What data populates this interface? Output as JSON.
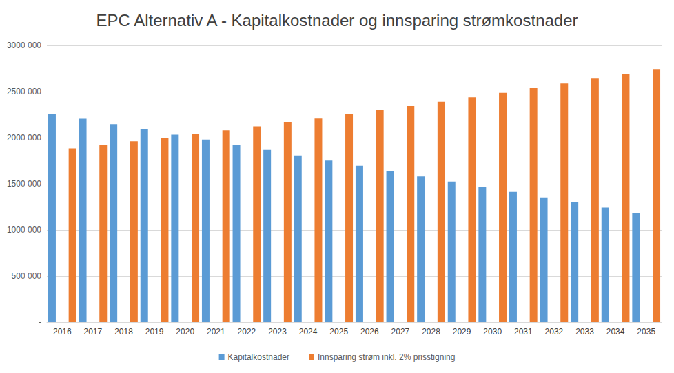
{
  "chart_data": {
    "type": "bar",
    "title": "EPC Alternativ A - Kapitalkostnader og innsparing strømkostnader",
    "categories": [
      "2016",
      "2017",
      "2018",
      "2019",
      "2020",
      "2021",
      "2022",
      "2023",
      "2024",
      "2025",
      "2026",
      "2027",
      "2028",
      "2029",
      "2030",
      "2031",
      "2032",
      "2033",
      "2034",
      "2035"
    ],
    "series": [
      {
        "name": "Kapitalkostnader",
        "color": "#5B9BD5",
        "values": [
          2260000,
          2205000,
          2148000,
          2093000,
          2033000,
          1980000,
          1920000,
          1867000,
          1808000,
          1752000,
          1695000,
          1638000,
          1580000,
          1525000,
          1467000,
          1412000,
          1352000,
          1298000,
          1243000,
          1185000
        ]
      },
      {
        "name": "Innsparing strøm inkl. 2% prisstigning",
        "color": "#ED7D31",
        "values": [
          1885000,
          1923000,
          1961000,
          2000000,
          2040000,
          2081000,
          2123000,
          2165000,
          2208000,
          2253000,
          2298000,
          2344000,
          2390000,
          2438000,
          2487000,
          2537000,
          2587000,
          2639000,
          2692000,
          2745000
        ]
      }
    ],
    "ylim": [
      0,
      3000000
    ],
    "yticks": [
      {
        "value": 0,
        "label": "-"
      },
      {
        "value": 500000,
        "label": "500 000"
      },
      {
        "value": 1000000,
        "label": "1000 000"
      },
      {
        "value": 1500000,
        "label": "1500 000"
      },
      {
        "value": 2000000,
        "label": "2000 000"
      },
      {
        "value": 2500000,
        "label": "2500 000"
      },
      {
        "value": 3000000,
        "label": "3000 000"
      }
    ],
    "grid": true,
    "legend": "bottom"
  }
}
